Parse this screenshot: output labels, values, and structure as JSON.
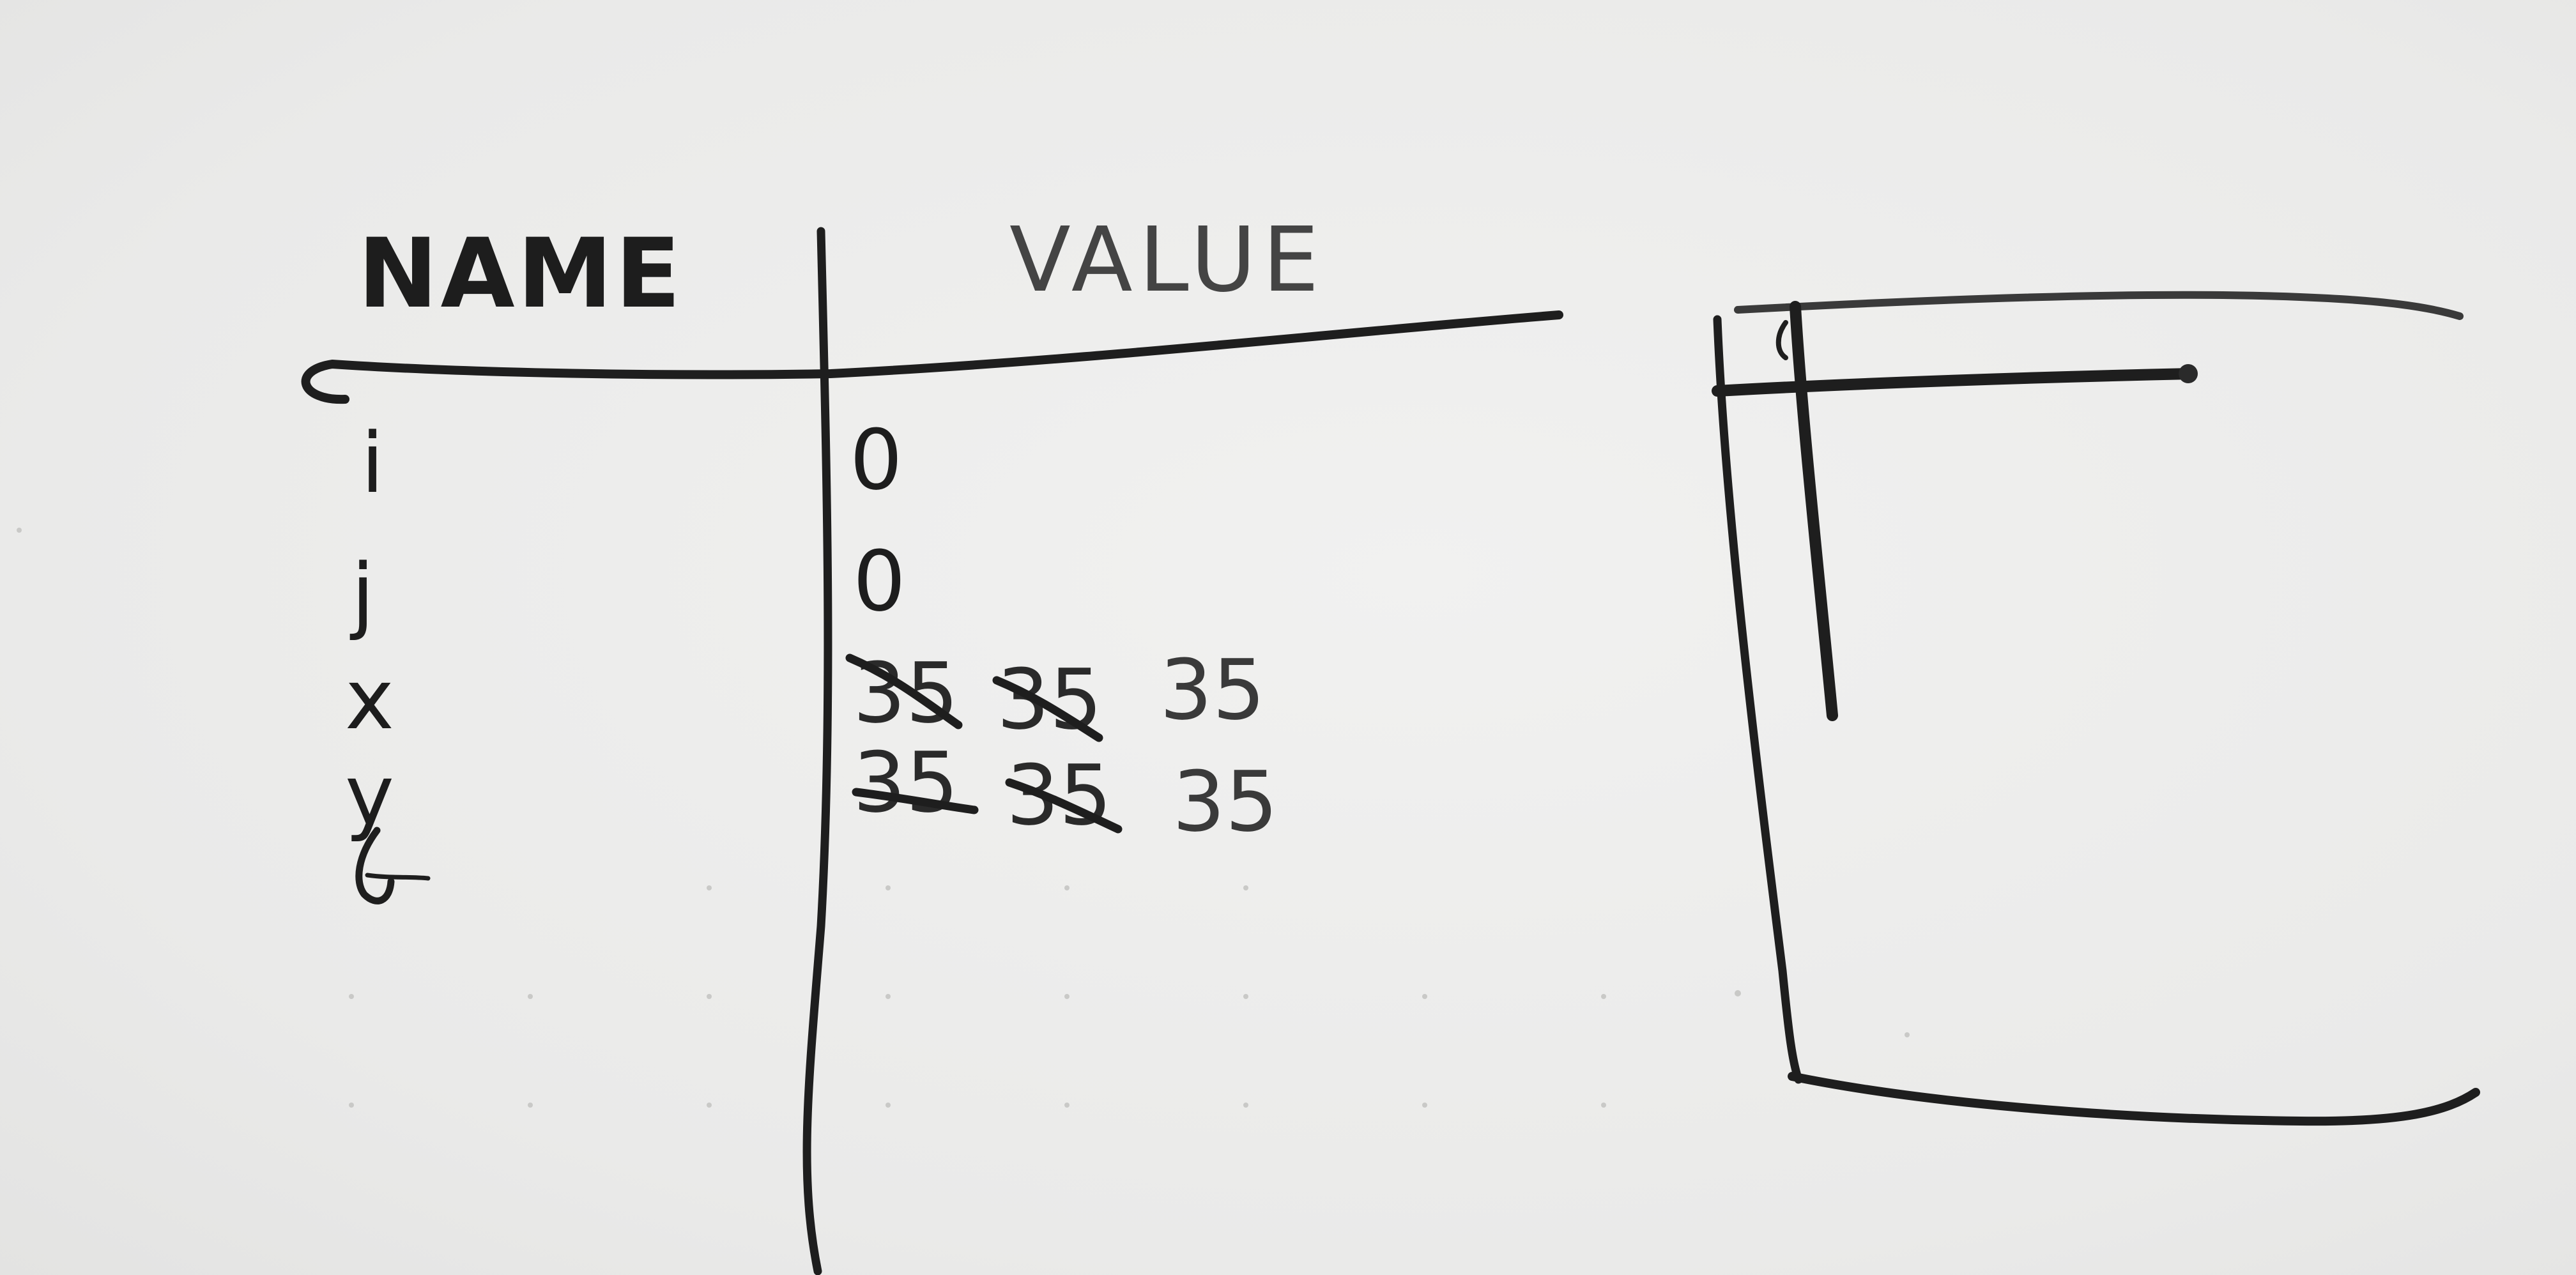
{
  "table": {
    "header": {
      "name": "NAME",
      "value": "VALUE"
    },
    "rows": [
      {
        "name": "i",
        "history": [],
        "current": "0"
      },
      {
        "name": "j",
        "history": [],
        "current": "0"
      },
      {
        "name": "x",
        "history": [
          "35",
          "35"
        ],
        "current": "35"
      },
      {
        "name": "y",
        "history": [
          "35",
          "35"
        ],
        "current": "35"
      }
    ],
    "cursor_glyph": "↲"
  },
  "canvas_sketch": {
    "shape": "square-window-with-crosshair-origin"
  },
  "colors": {
    "paper": "#ececeb",
    "ink": "#1e1e1e",
    "ink_light": "#444444"
  }
}
